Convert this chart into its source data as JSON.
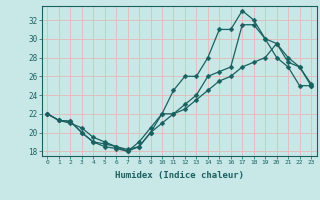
{
  "xlabel": "Humidex (Indice chaleur)",
  "background_color": "#c8e8e8",
  "grid_color": "#e8b8b8",
  "line_color": "#1a6060",
  "line1_x": [
    0,
    1,
    2,
    3,
    4,
    5,
    6,
    7,
    8,
    9,
    10,
    11,
    12,
    13,
    14,
    15,
    16,
    17,
    18,
    19,
    20,
    21,
    22,
    23
  ],
  "line1_y": [
    22,
    21.3,
    21.2,
    20,
    19,
    18.5,
    18.3,
    18,
    19,
    20.5,
    22,
    22,
    23,
    24,
    26,
    26.5,
    27,
    31.5,
    31.5,
    30,
    29.5,
    28,
    27,
    25
  ],
  "line2_x": [
    0,
    1,
    2,
    3,
    4,
    5,
    6,
    7,
    8,
    9,
    10,
    11,
    12,
    13,
    14,
    15,
    16,
    17,
    18,
    19,
    20,
    21,
    22,
    23
  ],
  "line2_y": [
    22,
    21.3,
    21.2,
    20,
    19,
    18.8,
    18.5,
    18,
    18.5,
    20,
    22,
    24.5,
    26,
    26,
    28,
    31,
    31,
    33,
    32,
    30,
    28,
    27,
    25,
    25
  ],
  "line3_x": [
    0,
    1,
    2,
    3,
    4,
    5,
    6,
    7,
    8,
    9,
    10,
    11,
    12,
    13,
    14,
    15,
    16,
    17,
    18,
    19,
    20,
    21,
    22,
    23
  ],
  "line3_y": [
    22,
    21.3,
    21,
    20.5,
    19.5,
    19,
    18.5,
    18.2,
    18.5,
    20,
    21,
    22,
    22.5,
    23.5,
    24.5,
    25.5,
    26,
    27,
    27.5,
    28,
    29.5,
    27.5,
    27,
    25.2
  ],
  "xlim": [
    -0.5,
    23.5
  ],
  "ylim": [
    17.5,
    33.5
  ],
  "yticks": [
    18,
    20,
    22,
    24,
    26,
    28,
    30,
    32
  ],
  "xticks": [
    0,
    1,
    2,
    3,
    4,
    5,
    6,
    7,
    8,
    9,
    10,
    11,
    12,
    13,
    14,
    15,
    16,
    17,
    18,
    19,
    20,
    21,
    22,
    23
  ],
  "marker_size": 2.5,
  "linewidth": 0.9
}
